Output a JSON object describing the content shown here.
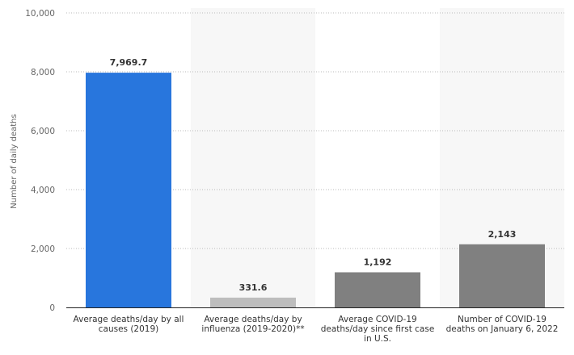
{
  "chart_data": {
    "type": "bar",
    "title": "",
    "xlabel": "",
    "ylabel": "Number of daily deaths",
    "ylim": [
      0,
      10000
    ],
    "yticks": [
      0,
      2000,
      4000,
      6000,
      8000,
      10000
    ],
    "ytick_labels": [
      "0",
      "2,000",
      "4,000",
      "6,000",
      "8,000",
      "10,000"
    ],
    "grid": true,
    "categories": [
      [
        "Average deaths/day by all",
        "causes (2019)"
      ],
      [
        "Average deaths/day by",
        "influenza (2019-2020)**"
      ],
      [
        "Average COVID-19",
        "deaths/day since first case",
        "in U.S."
      ],
      [
        "Number of COVID-19",
        "deaths on January 6, 2022"
      ]
    ],
    "values": [
      7969.7,
      331.6,
      1192,
      2143
    ],
    "data_labels": [
      "7,969.7",
      "331.6",
      "1,192",
      "2,143"
    ],
    "colors": [
      "#2876dd",
      "#bdbdbd",
      "#808080",
      "#808080"
    ],
    "band_color": "#f7f7f7"
  }
}
